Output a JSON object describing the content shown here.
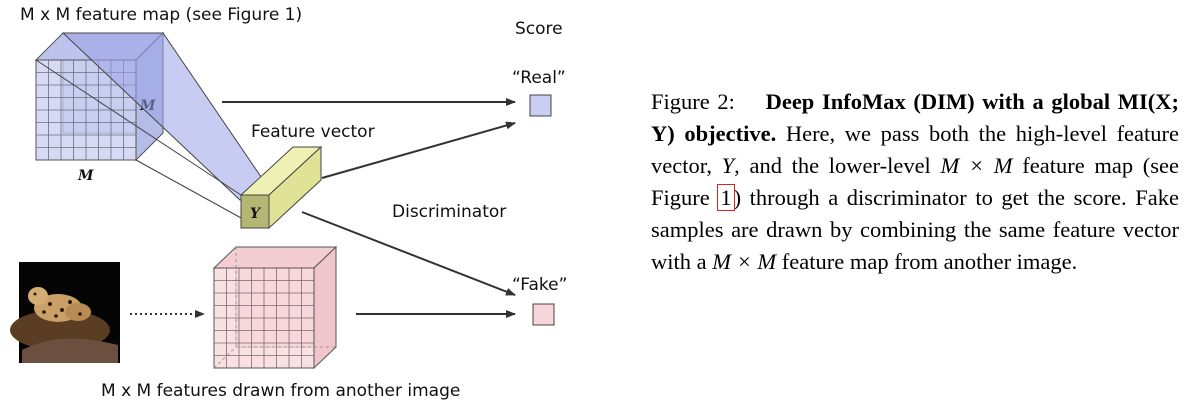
{
  "figure": {
    "top_label": "M x M feature map (see Figure 1)",
    "score_label": "Score",
    "real_label": "“Real”",
    "fake_label": "“Fake”",
    "feature_vector_label": "Feature vector",
    "discriminator_label": "Discriminator",
    "bottom_label": "M x M features drawn from another image",
    "m_side_label": "M",
    "m_bottom_label": "M",
    "y_label": "Y",
    "colors": {
      "real_map": "#c8cdf0",
      "fake_map": "#f8d8dc",
      "feature_vector": "#e6e8a2",
      "real_box": "#c9cef3",
      "fake_box": "#f6d6da"
    }
  },
  "caption": {
    "prefix": "Figure 2:",
    "title": "Deep InfoMax (DIM) with a global MI(X; Y) objective.",
    "text_1": "Here, we pass both the high-level feature vector, ",
    "y_var": "Y",
    "text_2": ", and the lower-level ",
    "mxm": "M × M",
    "text_3": " feature map (see Figure ",
    "figure_ref": "1",
    "text_4": ") through a discriminator to get the score. Fake samples are drawn by combining the same feature vector with a ",
    "mxm_2": "M × M",
    "text_5": " feature map from another image."
  }
}
